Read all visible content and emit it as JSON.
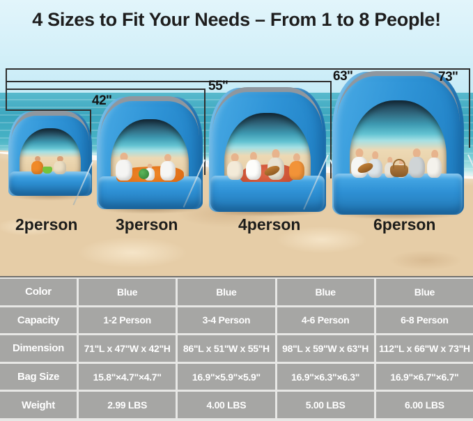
{
  "title": "4 Sizes to Fit Your Needs – From 1 to 8 People!",
  "sizes": [
    {
      "label": "2person",
      "height": "42''"
    },
    {
      "label": "3person",
      "height": "55''"
    },
    {
      "label": "4person",
      "height": "63''"
    },
    {
      "label": "6person",
      "height": "73''"
    }
  ],
  "table": {
    "rows": [
      {
        "label": "Color",
        "values": [
          "Blue",
          "Blue",
          "Blue",
          "Blue"
        ]
      },
      {
        "label": "Capacity",
        "values": [
          "1-2 Person",
          "3-4 Person",
          "4-6 Person",
          "6-8 Person"
        ]
      },
      {
        "label": "Dimension",
        "values": [
          "71\"L x 47\"W x 42\"H",
          "86\"L x 51\"W x 55\"H",
          "98\"L x 59\"W x 63\"H",
          "112\"L x 66\"W x 73\"H"
        ]
      },
      {
        "label": "Bag Size",
        "values": [
          "15.8\"×4.7\"×4.7\"",
          "16.9\"×5.9\"×5.9\"",
          "16.9\"×6.3\"×6.3\"",
          "16.9\"×6.7\"×6.7\""
        ]
      },
      {
        "label": "Weight",
        "values": [
          "2.99 LBS",
          "4.00 LBS",
          "5.00 LBS",
          "6.00 LBS"
        ]
      }
    ]
  },
  "colors": {
    "tent_blue": "#2f94d7",
    "table_cell_gray": "#a6a6a4",
    "sand": "#e6cda7",
    "ocean": "#46b1c4",
    "title_text": "#1e1e1e"
  }
}
